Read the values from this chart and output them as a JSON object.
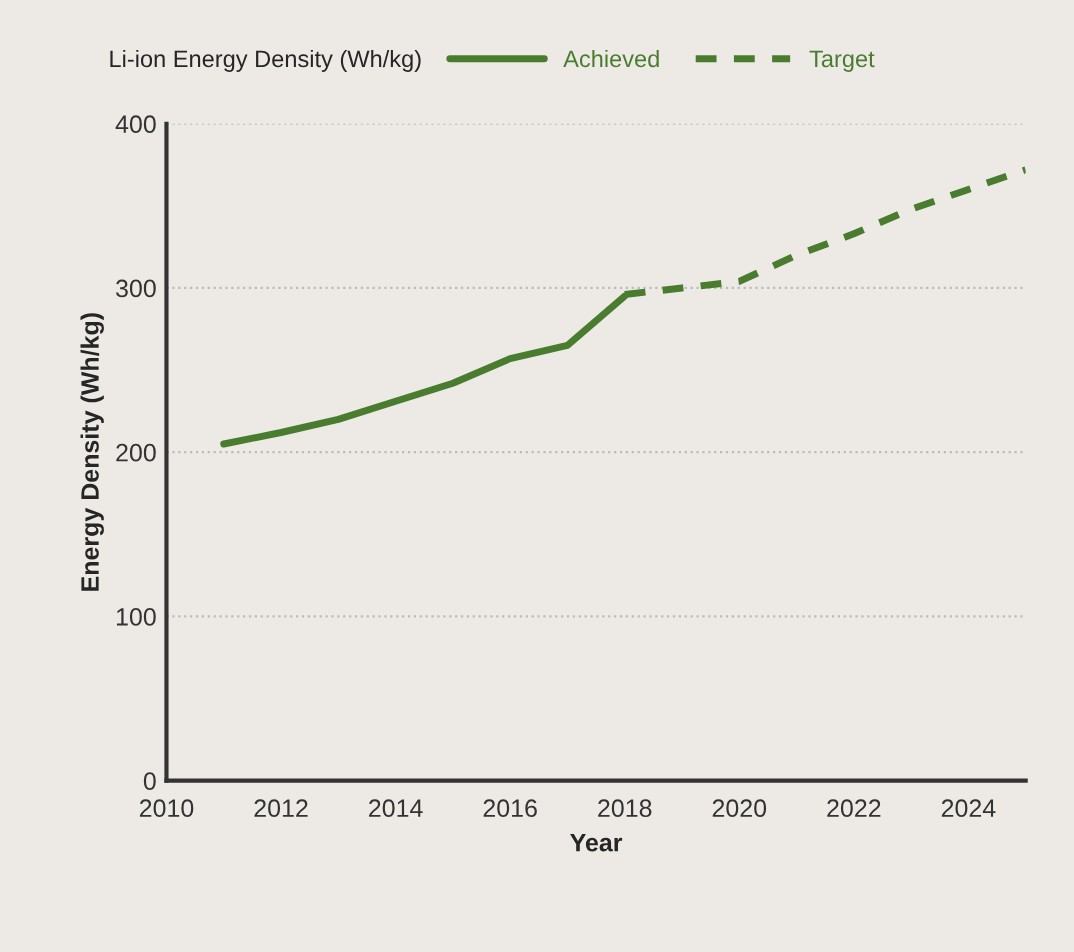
{
  "chart_data": {
    "type": "line",
    "legend_title": "Li-ion Energy Density (Wh/kg)",
    "xlabel": "Year",
    "ylabel": "Energy Density (Wh/kg)",
    "xlim": [
      2010,
      2025
    ],
    "xticks": [
      2010,
      2012,
      2014,
      2016,
      2018,
      2020,
      2022,
      2024
    ],
    "ylim": [
      0,
      400
    ],
    "yticks": [
      0,
      100,
      200,
      300,
      400
    ],
    "grid": "y",
    "legend": "top",
    "series": [
      {
        "name": "Achieved",
        "color": "#4a7c2f",
        "line_style": "solid",
        "x": [
          2011,
          2012,
          2013,
          2014,
          2015,
          2016,
          2017,
          2018
        ],
        "values": [
          205,
          212,
          220,
          231,
          242,
          257,
          265,
          295
        ]
      },
      {
        "name": "Target",
        "color": "#4a7c2f",
        "line_style": "dashed",
        "x": [
          2018,
          2019,
          2020,
          2021,
          2022,
          2023,
          2024,
          2025
        ],
        "values": [
          296,
          300,
          304,
          320,
          333,
          348,
          360,
          372
        ]
      }
    ]
  }
}
